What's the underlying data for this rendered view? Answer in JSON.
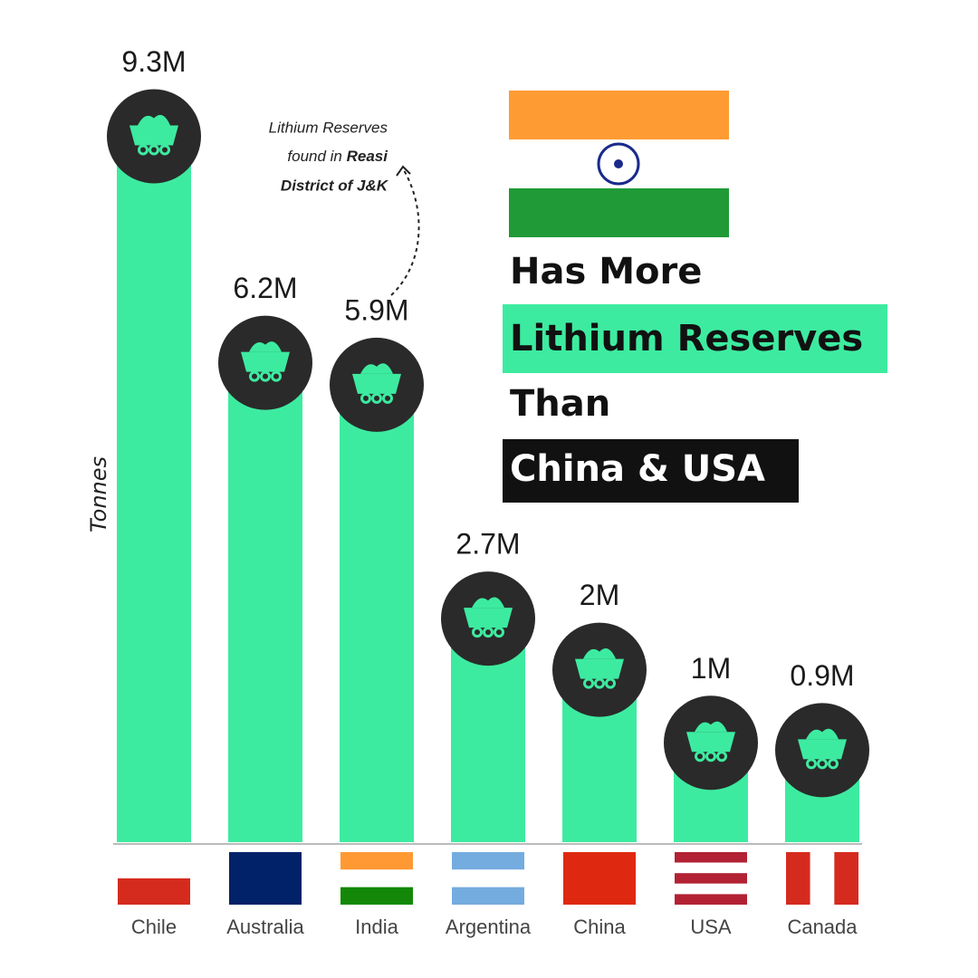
{
  "chart_data": {
    "type": "bar",
    "headline": [
      "Has More",
      "Lithium Reserves",
      "Than",
      "China & USA"
    ],
    "annotation": [
      "Lithium Reserves",
      "found in ",
      "Reasi",
      "District of J&K"
    ],
    "y_label": "Tonnes",
    "categories": [
      "Chile",
      "Australia",
      "India",
      "Argentina",
      "China",
      "USA",
      "Canada"
    ],
    "values": [
      9300000,
      6200000,
      5900000,
      2700000,
      2000000,
      1000000,
      900000
    ],
    "value_labels": [
      "9.3M",
      "6.2M",
      "5.9M",
      "2.7M",
      "2M",
      "1M",
      "0.9M"
    ],
    "color": "#3deba0"
  }
}
